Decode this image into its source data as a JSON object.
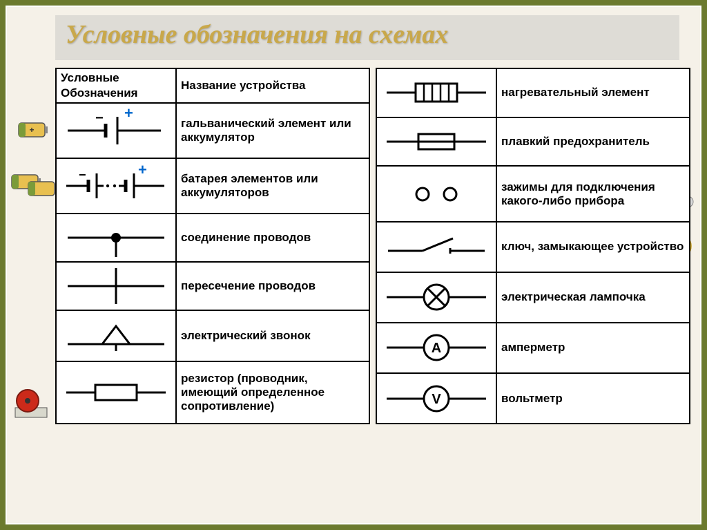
{
  "title": "Условные обозначения  на схемах",
  "header": {
    "col1": "Условные\nОбозначения",
    "col2": "Название устройства"
  },
  "leftRows": [
    {
      "symbol": "cell",
      "label": "гальванический элемент или аккумулятор"
    },
    {
      "symbol": "battery",
      "label": "батарея элементов или аккумуляторов"
    },
    {
      "symbol": "junction",
      "label": "соединение проводов"
    },
    {
      "symbol": "crossing",
      "label": "пересечение проводов"
    },
    {
      "symbol": "bell",
      "label": "электрический звонок"
    },
    {
      "symbol": "resistor",
      "label": "резистор (проводник, имеющий определенное сопротивление)"
    }
  ],
  "rightRows": [
    {
      "symbol": "heater",
      "label": "нагревательный элемент"
    },
    {
      "symbol": "fuse",
      "label": "плавкий предохранитель"
    },
    {
      "symbol": "terminals",
      "label": "зажимы для подключения какого-либо прибора"
    },
    {
      "symbol": "switch",
      "label": "ключ, замыкающее устройство"
    },
    {
      "symbol": "lamp",
      "label": "электрическая лампочка"
    },
    {
      "symbol": "ammeter",
      "label": "амперметр"
    },
    {
      "symbol": "voltmeter",
      "label": "вольтметр"
    }
  ],
  "style": {
    "stroke": "#000000",
    "strokeWidth": 3,
    "plusColor": "#0066cc",
    "svgWidth": 160,
    "svgHeight": 60,
    "titleColor": "#c9a84a",
    "frameColor": "#6b7a2e",
    "bg": "#f5f1e8"
  }
}
